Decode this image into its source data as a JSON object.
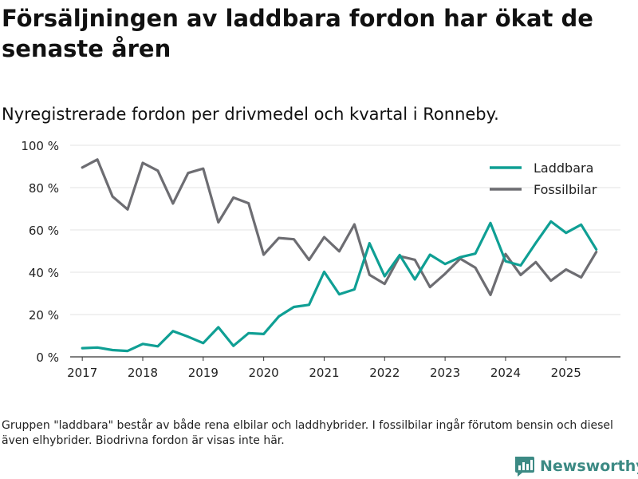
{
  "title": "Försäljningen av laddbara fordon har ökat de senaste åren",
  "subtitle": "Nyregistrerade fordon per drivmedel och kvartal i Ronneby.",
  "footnote": "Gruppen \"laddbara\" består av både rena elbilar och laddhybrider. I fossilbilar ingår förutom bensin och diesel även elhybrider. Biodrivna fordon är visas inte här.",
  "brand": "Newsworthy",
  "colors": {
    "laddbara": "#0f9f94",
    "fossil": "#6d6d72",
    "grid": "#e3e3e3",
    "brand": "#3c8a84"
  },
  "chart_data": {
    "type": "line",
    "title": "Nyregistrerade fordon per drivmedel och kvartal i Ronneby.",
    "xlabel": "",
    "ylabel": "",
    "ylim": [
      0,
      100
    ],
    "y_ticks": [
      0,
      20,
      40,
      60,
      80,
      100
    ],
    "y_tick_labels": [
      "0 %",
      "20 %",
      "40 %",
      "60 %",
      "80 %",
      "100 %"
    ],
    "xlim": [
      2016.8,
      2025.9
    ],
    "x_ticks": [
      2017,
      2018,
      2019,
      2020,
      2021,
      2022,
      2023,
      2024,
      2025
    ],
    "x_tick_labels": [
      "2017",
      "2018",
      "2019",
      "2020",
      "2021",
      "2022",
      "2023",
      "2024",
      "2025"
    ],
    "legend_position": "top-right",
    "x": [
      2017,
      2017.25,
      2017.5,
      2017.75,
      2018,
      2018.25,
      2018.5,
      2018.75,
      2019,
      2019.25,
      2019.5,
      2019.75,
      2020,
      2020.25,
      2020.5,
      2020.75,
      2021,
      2021.25,
      2021.5,
      2021.75,
      2022,
      2022.25,
      2022.5,
      2022.75,
      2023,
      2023.25,
      2023.5,
      2023.75,
      2024,
      2024.25,
      2024.5,
      2024.75,
      2025,
      2025.25,
      2025.5
    ],
    "series": [
      {
        "name": "Laddbara",
        "color": "#0f9f94",
        "values": [
          4.1,
          4.4,
          3.2,
          2.8,
          6.1,
          5.0,
          12.2,
          9.5,
          6.5,
          14.0,
          5.2,
          11.2,
          10.8,
          19.1,
          23.6,
          24.6,
          40.2,
          29.6,
          31.9,
          53.7,
          38.1,
          48.1,
          36.6,
          48.3,
          43.9,
          47.1,
          48.8,
          63.3,
          45.2,
          43.2,
          53.8,
          64.0,
          58.6,
          62.5,
          50.8
        ]
      },
      {
        "name": "Fossilbilar",
        "color": "#6d6d72",
        "values": [
          89.5,
          93.3,
          75.8,
          69.7,
          91.7,
          88.0,
          72.5,
          86.9,
          89.0,
          63.6,
          75.3,
          72.6,
          48.3,
          56.2,
          55.6,
          45.8,
          56.6,
          49.9,
          62.6,
          38.8,
          34.5,
          47.6,
          45.9,
          33.0,
          39.3,
          46.4,
          42.2,
          29.3,
          48.6,
          38.7,
          44.8,
          36.0,
          41.3,
          37.6,
          49.6
        ]
      }
    ]
  }
}
